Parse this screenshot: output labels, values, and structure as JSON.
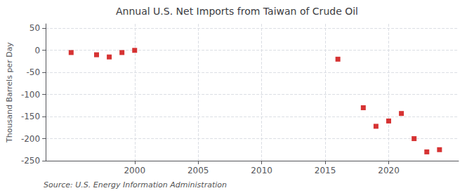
{
  "chart_data": {
    "type": "scatter",
    "title": "Annual U.S. Net Imports from Taiwan of Crude Oil",
    "ylabel": "Thousand Barrels per Day",
    "source": "Source: U.S. Energy Information Administration",
    "x": [
      1995,
      1997,
      1998,
      1999,
      2000,
      2016,
      2018,
      2019,
      2020,
      2021,
      2022,
      2023,
      2024
    ],
    "values": [
      -5,
      -10,
      -15,
      -5,
      0,
      -20,
      -130,
      -172,
      -160,
      -143,
      -200,
      -230,
      -225
    ],
    "color": "#cc0000",
    "marker": "square",
    "xlim": [
      1993,
      2025.5
    ],
    "xticks": [
      2000,
      2005,
      2010,
      2015,
      2020
    ],
    "ylim": [
      -250,
      60
    ],
    "yticks": [
      50,
      0,
      -50,
      -100,
      -150,
      -200,
      -250
    ],
    "grid": true
  }
}
